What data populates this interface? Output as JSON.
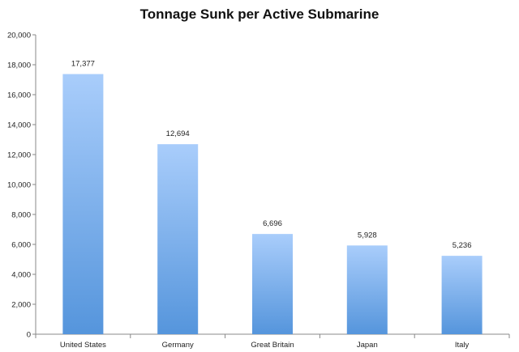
{
  "chart_data": {
    "type": "bar",
    "title": "Tonnage Sunk per Active Submarine",
    "xlabel": "",
    "ylabel": "",
    "categories": [
      "United States",
      "Germany",
      "Great Britain",
      "Japan",
      "Italy"
    ],
    "values": [
      17377,
      12694,
      6696,
      5928,
      5236
    ],
    "data_labels": [
      "17,377",
      "12,694",
      "6,696",
      "5,928",
      "5,236"
    ],
    "ylim": [
      0,
      20000
    ],
    "yticks": [
      0,
      2000,
      4000,
      6000,
      8000,
      10000,
      12000,
      14000,
      16000,
      18000,
      20000
    ],
    "ytick_labels": [
      "0",
      "2,000",
      "4,000",
      "6,000",
      "8,000",
      "10,000",
      "12,000",
      "14,000",
      "16,000",
      "18,000",
      "20,000"
    ],
    "grid": false,
    "legend": "none",
    "colors": {
      "bar_top": "#a9cdfb",
      "bar_bottom": "#5595dc",
      "axis": "#888888"
    }
  }
}
